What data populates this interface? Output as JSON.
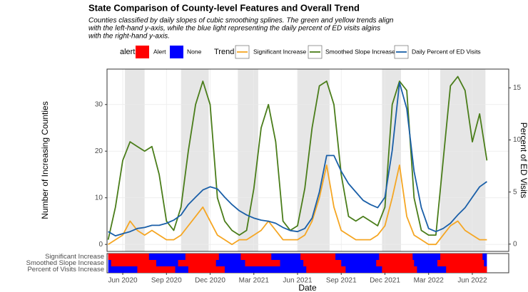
{
  "chart_data": {
    "type": "line",
    "title": "State Comparison of County-level Features and Overall Trend",
    "subtitle": [
      "Counties classified by daily slopes of cubic smoothing splines. The green and yellow trends align",
      "with the left-hand y-axis, while the blue light representing the daily percent of ED visits algins",
      "with the right-hand y-axis."
    ],
    "x_label": "Date",
    "y_label": "Number of Increasing Counties",
    "y2_label": "Percent of ED Visits",
    "legend_title": "Trend",
    "grid": true,
    "x": [
      5,
      5.5,
      6,
      6.5,
      7,
      7.5,
      8,
      8.5,
      9,
      9.5,
      10,
      10.5,
      11,
      11.5,
      12,
      12.5,
      13,
      13.5,
      14,
      14.5,
      15,
      15.5,
      16,
      16.5,
      17,
      17.5,
      18,
      18.5,
      19,
      19.5,
      20,
      20.5,
      21,
      21.5,
      22,
      22.5,
      23,
      23.5,
      24,
      24.5,
      25,
      25.5,
      26,
      26.5,
      27,
      27.5,
      28,
      28.5,
      29,
      29.5,
      30,
      30.5,
      31
    ],
    "xlim": [
      4.92,
      32.5
    ],
    "xticks": [
      {
        "value": 6,
        "label": "Jun 2020"
      },
      {
        "value": 9,
        "label": "Sep 2020"
      },
      {
        "value": 12,
        "label": "Dec 2020"
      },
      {
        "value": 15,
        "label": "Mar 2021"
      },
      {
        "value": 18,
        "label": "Jun 2021"
      },
      {
        "value": 21,
        "label": "Sep 2021"
      },
      {
        "value": 24,
        "label": "Dec 2021"
      },
      {
        "value": 27,
        "label": "Mar 2022"
      },
      {
        "value": 30,
        "label": "Jun 2022"
      }
    ],
    "ylim": [
      -1.5,
      37.6
    ],
    "yticks": [
      0,
      10,
      20,
      30
    ],
    "y2lim": [
      -0.7,
      16.8
    ],
    "y2ticks": [
      0,
      5,
      10,
      15
    ],
    "series": [
      {
        "name": "Significant Increase",
        "color": "#f5a623",
        "values": [
          0,
          1,
          2,
          5,
          3,
          2,
          3,
          2,
          1,
          1,
          2,
          4,
          6,
          8,
          5,
          2,
          1,
          0,
          1,
          1,
          2,
          3,
          5,
          3,
          1,
          1,
          1,
          2,
          5,
          10,
          17,
          8,
          3,
          2,
          1,
          1,
          1,
          2,
          4,
          10,
          17,
          6,
          2,
          1,
          0,
          0,
          2,
          4,
          5,
          3,
          2,
          1,
          1
        ]
      },
      {
        "name": "Smoothed Slope Increase",
        "color": "#4a7d1a",
        "values": [
          1,
          8,
          18,
          22,
          21,
          20,
          21,
          15,
          5,
          3,
          8,
          20,
          30,
          35,
          30,
          10,
          5,
          3,
          2,
          3,
          12,
          25,
          30,
          22,
          5,
          3,
          4,
          12,
          25,
          34,
          35,
          30,
          15,
          6,
          5,
          6,
          5,
          4,
          8,
          30,
          35,
          33,
          10,
          3,
          2,
          2,
          18,
          34,
          36,
          33,
          22,
          28,
          18
        ]
      },
      {
        "name": "Daily Percent of ED Visits",
        "color": "#1a5fa8",
        "axis": "y2",
        "values": [
          1.2,
          0.8,
          1.0,
          1.2,
          1.5,
          1.6,
          1.8,
          1.8,
          2.0,
          2.3,
          2.8,
          3.8,
          4.5,
          5.2,
          5.5,
          5.3,
          4.5,
          3.8,
          3.2,
          2.8,
          2.5,
          2.3,
          2.2,
          2.0,
          1.6,
          1.3,
          1.2,
          1.5,
          2.5,
          5.0,
          8.5,
          8.5,
          7.0,
          5.8,
          5.0,
          4.2,
          3.8,
          3.5,
          4.5,
          9.0,
          15.5,
          13.0,
          7.0,
          3.5,
          1.5,
          1.2,
          1.5,
          2.0,
          2.8,
          3.5,
          4.5,
          5.5,
          6.0
        ]
      }
    ],
    "shaded_periods": [
      [
        6.15,
        7.5
      ],
      [
        10.0,
        11.9
      ],
      [
        13.9,
        15.3
      ],
      [
        18.0,
        20.2
      ],
      [
        23.8,
        25.1
      ],
      [
        27.8,
        30.9
      ]
    ],
    "alert_strip": {
      "legend_title": "alert",
      "levels": [
        {
          "name": "Alert",
          "color": "#ff0000"
        },
        {
          "name": "None",
          "color": "#0000ff"
        }
      ],
      "rows": [
        {
          "name": "Significant Increase",
          "alert_intervals": [
            [
              5,
              7.8
            ],
            [
              10.3,
              12.6
            ],
            [
              14.1,
              16.2
            ],
            [
              18.2,
              20.6
            ],
            [
              23.6,
              25.9
            ],
            [
              27.8,
              30.7
            ]
          ]
        },
        {
          "name": "Smoothed Slope Increase",
          "alert_intervals": [
            [
              5.2,
              8.3
            ],
            [
              9.8,
              12.4
            ],
            [
              14.4,
              16.8
            ],
            [
              18.4,
              21.0
            ],
            [
              23.4,
              26.0
            ],
            [
              27.6,
              30.8
            ]
          ]
        },
        {
          "name": "Percent of Visits Increase",
          "alert_intervals": [
            [
              7.0,
              9.6
            ],
            [
              10.5,
              13.0
            ],
            [
              18.6,
              21.3
            ],
            [
              23.8,
              26.2
            ],
            [
              28.2,
              31.0
            ]
          ]
        }
      ]
    }
  }
}
